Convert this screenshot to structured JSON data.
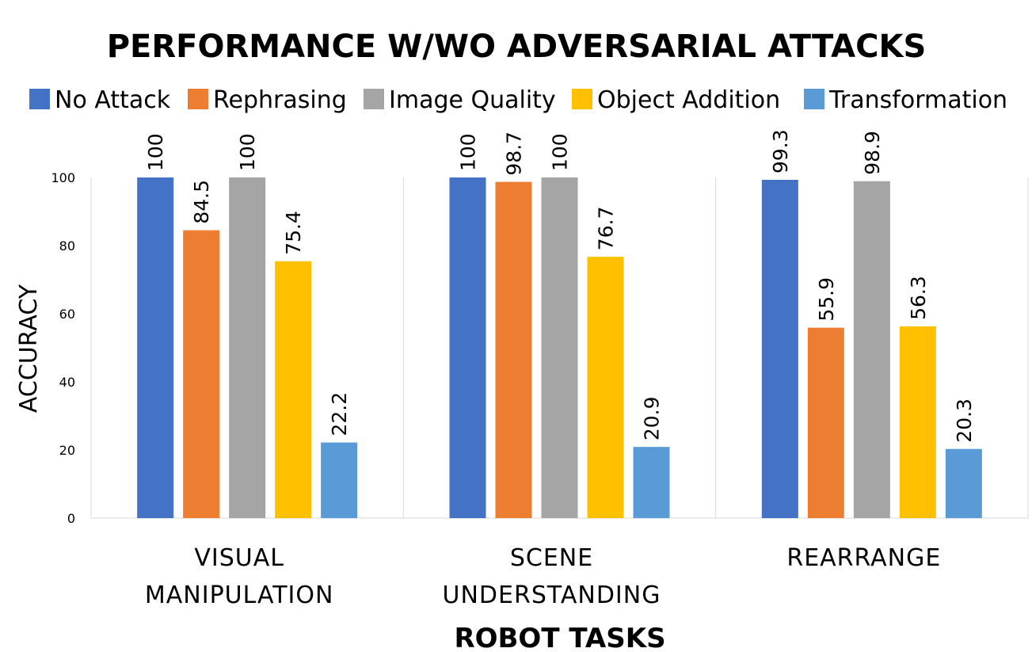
{
  "chart_data": {
    "type": "bar",
    "title": "PERFORMANCE W/WO ADVERSARIAL ATTACKS",
    "xlabel": "ROBOT TASKS",
    "ylabel": "ACCURACY",
    "ylim": [
      0,
      100
    ],
    "yticks": [
      "0",
      "20",
      "40",
      "60",
      "80",
      "100"
    ],
    "grid": "vertical separators between categories",
    "legend_position": "top",
    "categories": [
      [
        "VISUAL",
        "MANIPULATION"
      ],
      [
        "SCENE",
        "UNDERSTANDING"
      ],
      [
        "REARRANGE"
      ]
    ],
    "series": [
      {
        "name": "No Attack",
        "color": "#4472C4",
        "values": [
          100,
          100,
          99.3
        ],
        "labels": [
          "100",
          "100",
          "99.3"
        ]
      },
      {
        "name": "Rephrasing",
        "color": "#ED7D31",
        "values": [
          84.5,
          98.7,
          55.9
        ],
        "labels": [
          "84.5",
          "98.7",
          "55.9"
        ]
      },
      {
        "name": "Image Quality",
        "color": "#A5A5A5",
        "values": [
          100,
          100,
          98.9
        ],
        "labels": [
          "100",
          "100",
          "98.9"
        ]
      },
      {
        "name": "Object Addition",
        "color": "#FFC000",
        "values": [
          75.4,
          76.7,
          56.3
        ],
        "labels": [
          "75.4",
          "76.7",
          "56.3"
        ]
      },
      {
        "name": "Transformation",
        "color": "#5B9BD5",
        "values": [
          22.2,
          20.9,
          20.3
        ],
        "labels": [
          "22.2",
          "20.9",
          "20.3"
        ]
      }
    ]
  }
}
